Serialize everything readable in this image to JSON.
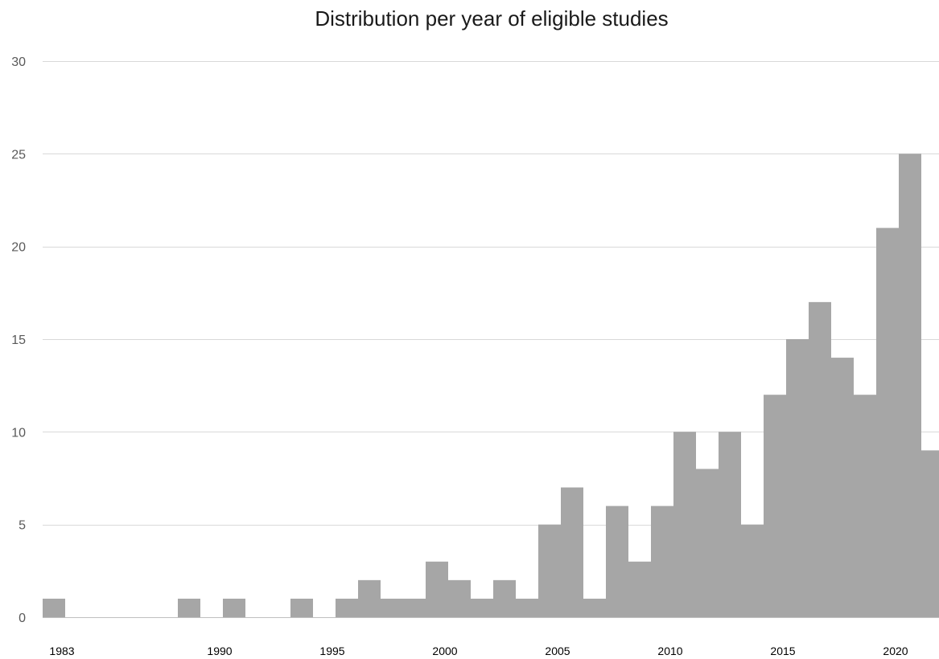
{
  "chart_data": {
    "type": "bar",
    "title": "Distribution per year of eligible studies",
    "xlabel": "",
    "ylabel": "",
    "ylim": [
      0,
      30
    ],
    "yticks": [
      0,
      5,
      10,
      15,
      20,
      25,
      30
    ],
    "x_tick_labels": [
      "1983",
      "1990",
      "1995",
      "2000",
      "2005",
      "2010",
      "2015",
      "2020"
    ],
    "grid": true,
    "bar_color": "#a6a6a6",
    "categories": [
      1983,
      1984,
      1985,
      1986,
      1987,
      1988,
      1989,
      1990,
      1991,
      1992,
      1993,
      1994,
      1995,
      1996,
      1997,
      1998,
      1999,
      2000,
      2001,
      2002,
      2003,
      2004,
      2005,
      2006,
      2007,
      2008,
      2009,
      2010,
      2011,
      2012,
      2013,
      2014,
      2015,
      2016,
      2017,
      2018,
      2019,
      2020,
      2021,
      2022
    ],
    "values": [
      1,
      0,
      0,
      0,
      0,
      0,
      1,
      0,
      1,
      0,
      0,
      1,
      0,
      1,
      2,
      1,
      1,
      3,
      2,
      1,
      2,
      1,
      5,
      7,
      1,
      6,
      3,
      6,
      10,
      8,
      10,
      5,
      12,
      15,
      17,
      14,
      12,
      21,
      25,
      9
    ]
  }
}
